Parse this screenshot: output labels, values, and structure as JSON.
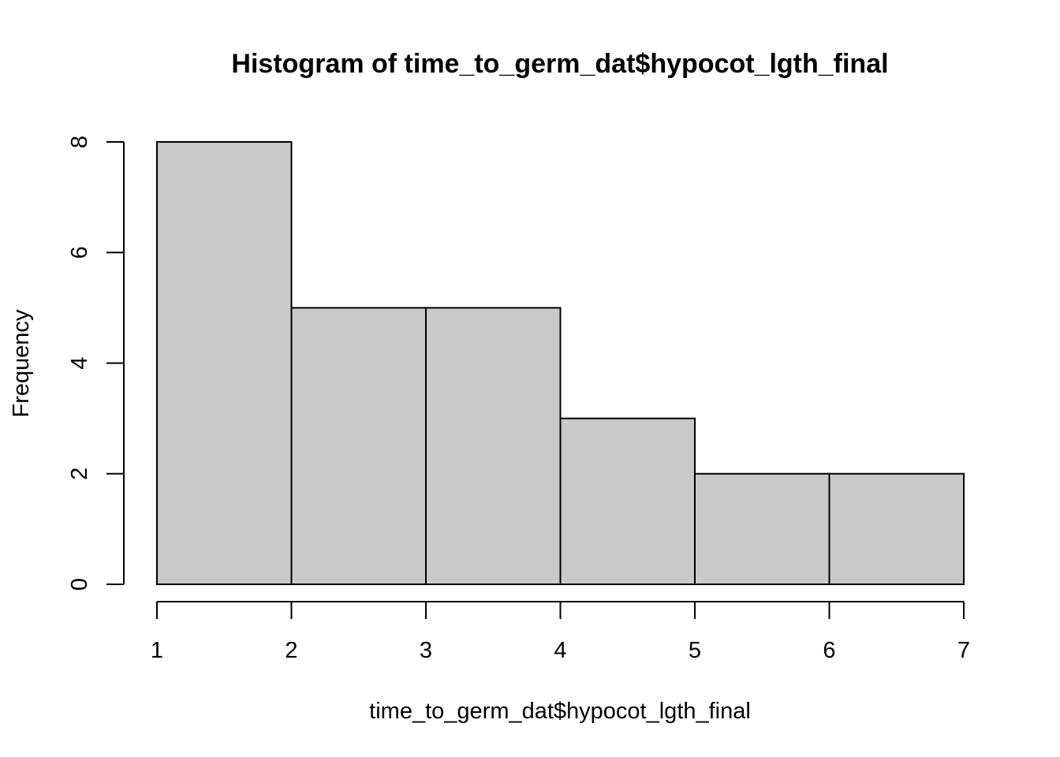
{
  "chart_data": {
    "type": "bar",
    "title": "Histogram of time_to_germ_dat$hypocot_lgth_final",
    "xlabel": "time_to_germ_dat$hypocot_lgth_final",
    "ylabel": "Frequency",
    "bins": [
      {
        "x0": 1,
        "x1": 2,
        "count": 8
      },
      {
        "x0": 2,
        "x1": 3,
        "count": 5
      },
      {
        "x0": 3,
        "x1": 4,
        "count": 5
      },
      {
        "x0": 4,
        "x1": 5,
        "count": 3
      },
      {
        "x0": 5,
        "x1": 6,
        "count": 2
      },
      {
        "x0": 6,
        "x1": 7,
        "count": 2
      }
    ],
    "xticks": [
      1,
      2,
      3,
      4,
      5,
      6,
      7
    ],
    "yticks": [
      0,
      2,
      4,
      6,
      8
    ],
    "xlim": [
      1,
      7
    ],
    "ylim": [
      0,
      8
    ],
    "bar_color": "#c9c9c9",
    "grid": false,
    "legend": "none"
  }
}
